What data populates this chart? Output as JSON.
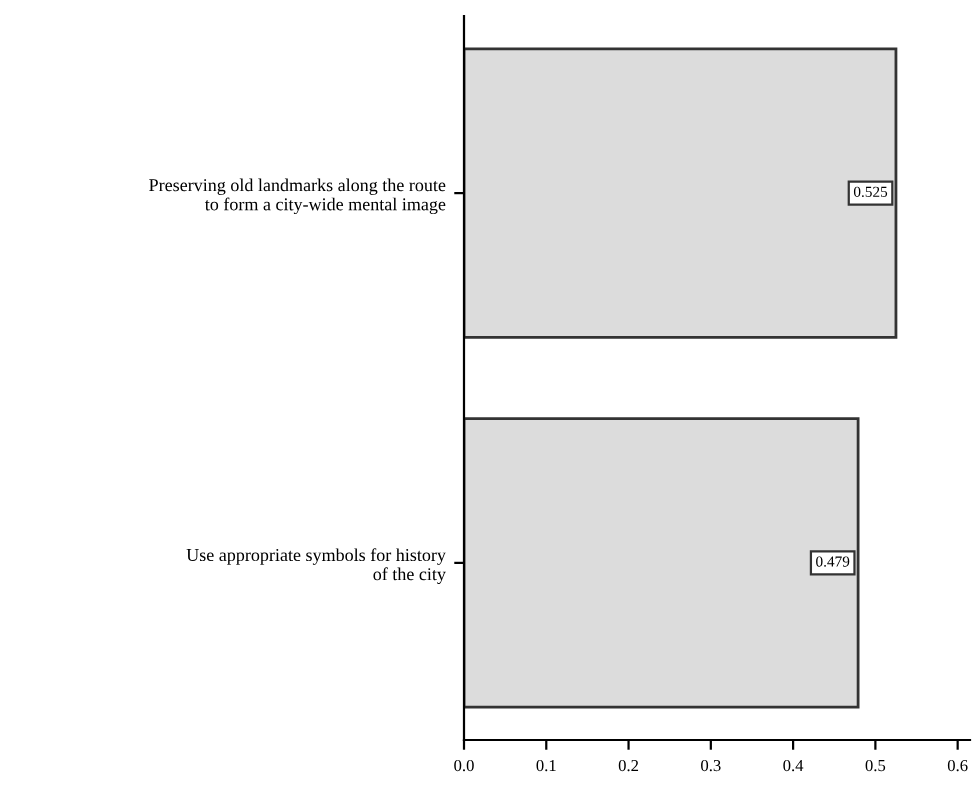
{
  "chart_data": {
    "type": "bar",
    "orientation": "horizontal",
    "categories": [
      "Preserving old landmarks along the route\nto form a city-wide mental image",
      "Use appropriate symbols for history\nof the city"
    ],
    "values": [
      0.525,
      0.479
    ],
    "color": "#dcdcdc",
    "data_labels": true,
    "xlim": [
      0,
      0.615
    ],
    "xticks": [
      {
        "value": 0,
        "label": "0.0"
      },
      0.1,
      0.2,
      0.3,
      0.4,
      0.5,
      0.6
    ],
    "grid": false,
    "legend": false
  }
}
